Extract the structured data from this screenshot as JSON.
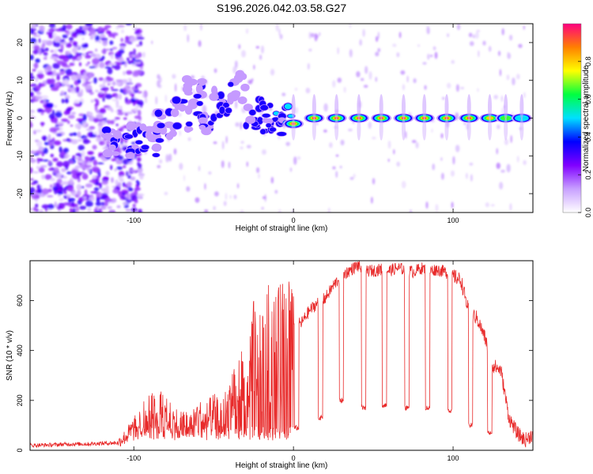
{
  "title": "S196.2026.042.03.58.G27",
  "chart_data": [
    {
      "type": "heatmap",
      "name": "spectrogram",
      "xlabel": "Height of straight line (km)",
      "ylabel": "Frequency (Hz)",
      "xlim": [
        -165,
        150
      ],
      "ylim": [
        -25,
        25
      ],
      "xticks": [
        {
          "value": -100,
          "label": "-100"
        },
        {
          "value": 0,
          "label": "0"
        },
        {
          "value": 100,
          "label": "100"
        }
      ],
      "yticks": [
        {
          "value": 20,
          "label": "20"
        },
        {
          "value": 10,
          "label": "10"
        },
        {
          "value": 0,
          "label": "0"
        },
        {
          "value": -10,
          "label": "-10"
        },
        {
          "value": -20,
          "label": "-20"
        }
      ],
      "colorbar": {
        "label": "Normalized spectral amplitude",
        "range": [
          0,
          1
        ],
        "ticks": [
          {
            "value": 0.0,
            "label": "0.0"
          },
          {
            "value": 0.2,
            "label": "0.2"
          },
          {
            "value": 0.4,
            "label": "0.4"
          },
          {
            "value": 0.6,
            "label": "0.6"
          },
          {
            "value": 0.8,
            "label": "0.8"
          }
        ],
        "colors": [
          "#ffffff",
          "#c8a0ff",
          "#8000ff",
          "#0000ff",
          "#00e0ff",
          "#00ff40",
          "#ffff00",
          "#ff8000",
          "#ff0080"
        ]
      },
      "ridge": [
        {
          "x": -115,
          "y": -7,
          "amp": 0.35
        },
        {
          "x": -100,
          "y": -6,
          "amp": 0.4
        },
        {
          "x": -90,
          "y": -6,
          "amp": 0.4
        },
        {
          "x": -80,
          "y": -2,
          "amp": 0.38
        },
        {
          "x": -70,
          "y": 1,
          "amp": 0.35
        },
        {
          "x": -62,
          "y": 7,
          "amp": 0.3
        },
        {
          "x": -55,
          "y": 0,
          "amp": 0.4
        },
        {
          "x": -45,
          "y": 4,
          "amp": 0.4
        },
        {
          "x": -35,
          "y": 8,
          "amp": 0.3
        },
        {
          "x": -25,
          "y": 1,
          "amp": 0.45
        },
        {
          "x": -15,
          "y": 0,
          "amp": 0.5
        },
        {
          "x": -5,
          "y": -0.5,
          "amp": 0.55
        },
        {
          "x": 0,
          "y": -1.5,
          "amp": 0.95
        },
        {
          "x": 13,
          "y": 0,
          "amp": 0.98
        },
        {
          "x": 27,
          "y": 0,
          "amp": 1.0
        },
        {
          "x": 41,
          "y": 0,
          "amp": 1.0
        },
        {
          "x": 55,
          "y": 0,
          "amp": 1.0
        },
        {
          "x": 69,
          "y": 0,
          "amp": 1.0
        },
        {
          "x": 82,
          "y": 0,
          "amp": 1.0
        },
        {
          "x": 96,
          "y": 0,
          "amp": 1.0
        },
        {
          "x": 110,
          "y": 0,
          "amp": 0.95
        },
        {
          "x": 123,
          "y": 0,
          "amp": 0.85
        },
        {
          "x": 133,
          "y": 0,
          "amp": 0.6
        },
        {
          "x": 143,
          "y": 0,
          "amp": 0.45
        }
      ]
    },
    {
      "type": "line",
      "name": "snr",
      "xlabel": "Height of straight line (km)",
      "ylabel": "SNR (10 * v/v)",
      "xlim": [
        -165,
        150
      ],
      "ylim": [
        0,
        760
      ],
      "xticks": [
        {
          "value": -100,
          "label": "-100"
        },
        {
          "value": 0,
          "label": "0"
        },
        {
          "value": 100,
          "label": "100"
        }
      ],
      "yticks": [
        {
          "value": 0,
          "label": "0"
        },
        {
          "value": 200,
          "label": "200"
        },
        {
          "value": 400,
          "label": "400"
        },
        {
          "value": 600,
          "label": "600"
        }
      ],
      "color": "#e82a2a",
      "series": [
        {
          "name": "SNR",
          "x": [
            -165,
            -150,
            -140,
            -130,
            -120,
            -110,
            -105,
            -100,
            -95,
            -90,
            -85,
            -80,
            -75,
            -70,
            -65,
            -60,
            -55,
            -50,
            -45,
            -40,
            -35,
            -30,
            -25,
            -20,
            -15,
            -10,
            -5,
            0,
            5,
            10,
            15,
            20,
            25,
            30,
            35,
            40,
            45,
            50,
            55,
            60,
            65,
            70,
            75,
            80,
            85,
            90,
            95,
            100,
            105,
            110,
            115,
            120,
            125,
            130,
            135,
            140,
            145,
            150
          ],
          "y": [
            20,
            22,
            25,
            25,
            28,
            30,
            55,
            85,
            115,
            150,
            130,
            190,
            110,
            105,
            100,
            130,
            120,
            145,
            120,
            190,
            270,
            230,
            380,
            330,
            430,
            400,
            460,
            500,
            510,
            560,
            590,
            610,
            660,
            700,
            720,
            740,
            720,
            720,
            725,
            720,
            730,
            725,
            715,
            730,
            720,
            725,
            715,
            700,
            680,
            550,
            530,
            450,
            340,
            320,
            130,
            70,
            40,
            65
          ]
        }
      ],
      "dips": [
        {
          "x": 2,
          "y": 80
        },
        {
          "x": 17,
          "y": 120
        },
        {
          "x": 30,
          "y": 190
        },
        {
          "x": 44,
          "y": 160
        },
        {
          "x": 57,
          "y": 170
        },
        {
          "x": 71,
          "y": 160
        },
        {
          "x": 84,
          "y": 160
        },
        {
          "x": 98,
          "y": 150
        },
        {
          "x": 111,
          "y": 90
        },
        {
          "x": 123,
          "y": 60
        }
      ]
    }
  ]
}
